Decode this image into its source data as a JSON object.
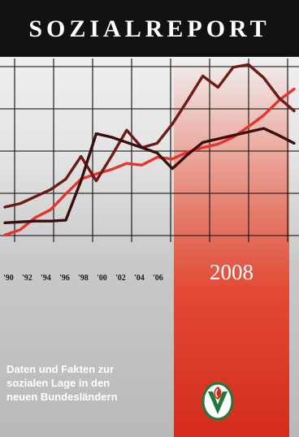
{
  "cover": {
    "title": "SOZIALREPORT",
    "year": "2008",
    "subtitle": [
      "Daten und Fakten zur",
      "sozialen Lage in den",
      "neuen Bundesländern"
    ]
  },
  "colors": {
    "title_bar": "#111111",
    "band": "#e03b28",
    "series_1": "#e8322b",
    "series_2": "#6e1a16",
    "series_3": "#3a0e0c"
  },
  "logo": {
    "icon": "volkssolidaritaet-logo-icon"
  },
  "chart_data": {
    "type": "line",
    "tick_labels": [
      "'90",
      "'92",
      "'94",
      "'96",
      "'98",
      "'00",
      "'02",
      "'04",
      "'06"
    ],
    "grid": true,
    "series": [
      {
        "color": "#e8322b",
        "x": [
          0,
          1,
          2,
          3,
          4,
          5,
          6,
          7,
          8,
          9,
          10,
          11,
          12,
          13,
          14,
          15,
          16,
          17,
          18,
          19
        ],
        "y": [
          8,
          14,
          28,
          37,
          55,
          72,
          78,
          83,
          90,
          88,
          97,
          95,
          103,
          108,
          112,
          120,
          132,
          145,
          162,
          175
        ]
      },
      {
        "color": "#6e1a16",
        "x": [
          0,
          1,
          2,
          3,
          4,
          5,
          6,
          7,
          8,
          9,
          10,
          11,
          12,
          13,
          14,
          15,
          16,
          17,
          18,
          19
        ],
        "y": [
          40,
          44,
          52,
          60,
          72,
          98,
          70,
          98,
          128,
          108,
          113,
          135,
          162,
          190,
          177,
          200,
          203,
          188,
          165,
          150
        ]
      },
      {
        "color": "#3a0e0c",
        "x": [
          0,
          1,
          2,
          3,
          4,
          5,
          6,
          7,
          8,
          9,
          10,
          11,
          12,
          13,
          14,
          15,
          16,
          17,
          18,
          19
        ],
        "y": [
          22,
          23,
          24,
          24,
          25,
          70,
          124,
          120,
          114,
          108,
          102,
          84,
          100,
          114,
          118,
          122,
          126,
          130,
          122,
          113
        ]
      }
    ]
  }
}
